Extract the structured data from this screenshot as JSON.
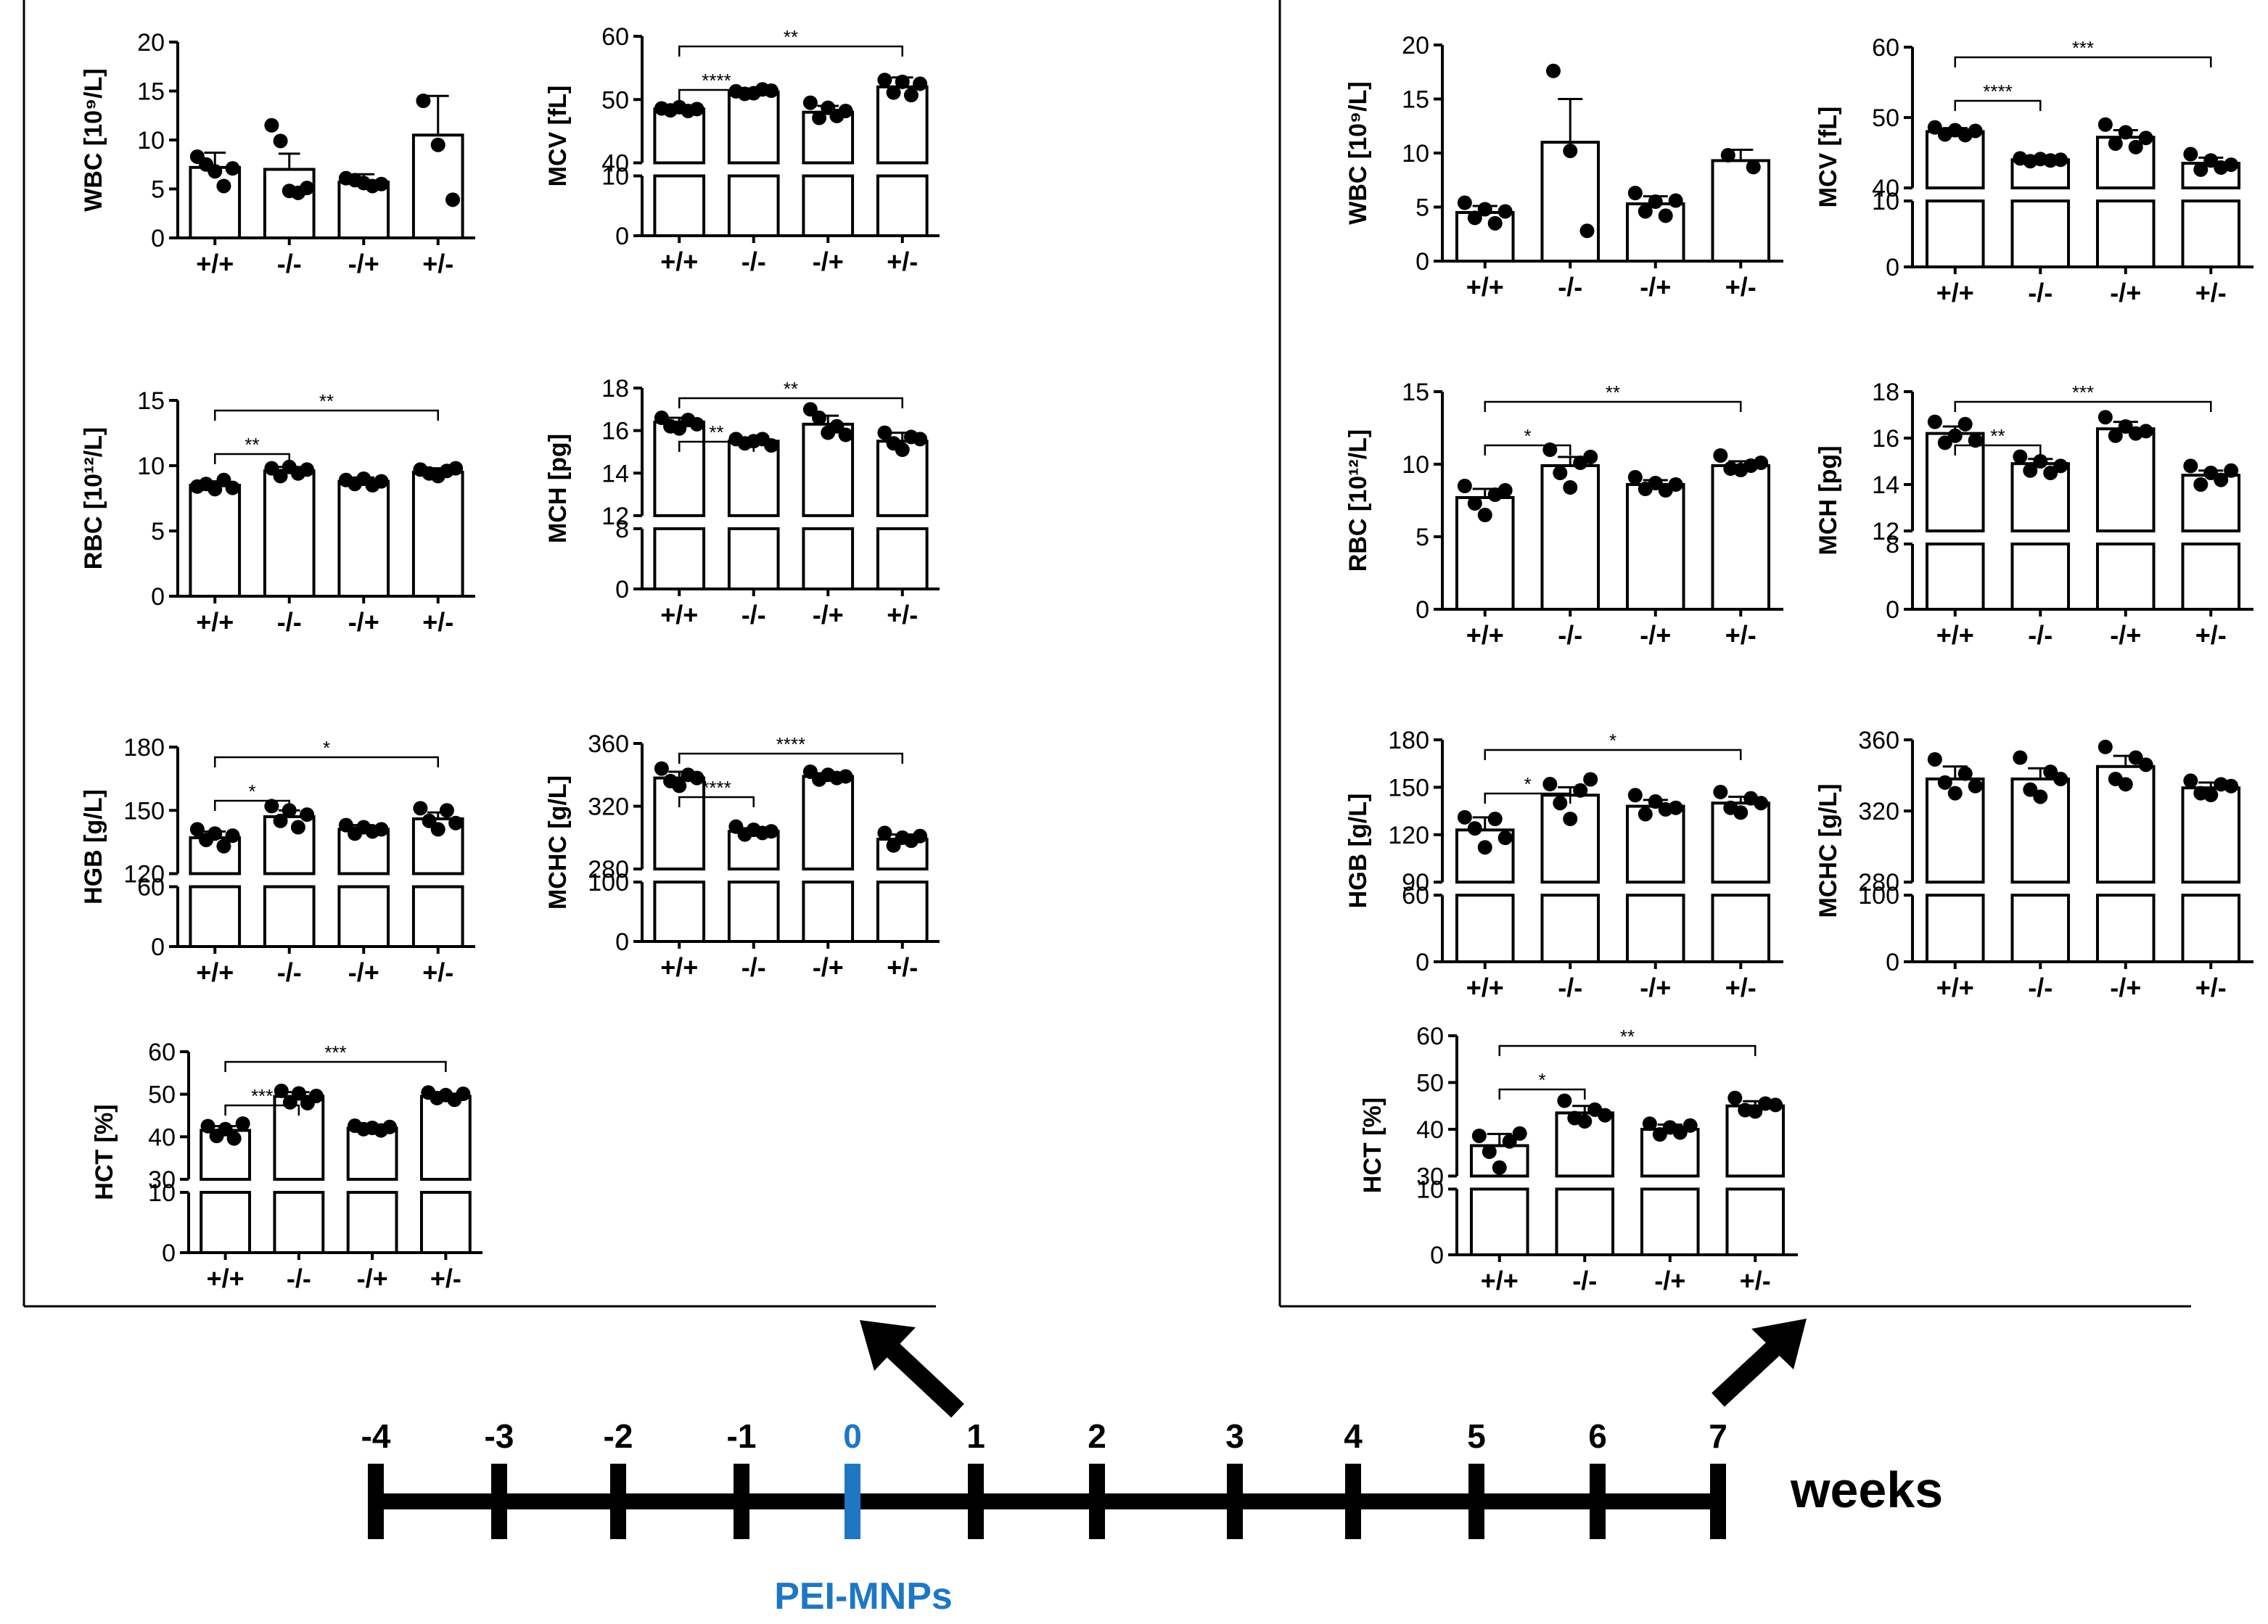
{
  "timeline": {
    "weeks": [
      "-4",
      "-3",
      "-2",
      "-1",
      "0",
      "1",
      "2",
      "3",
      "4",
      "5",
      "6",
      "7"
    ],
    "highlight_week": "0",
    "unit_label": "weeks",
    "injection_label": "PEI-MNPs",
    "line_color": "#000000",
    "highlight_color": "#1f77c4"
  },
  "chart_data": [
    {
      "panel": "week 0",
      "id": "wbc-0",
      "type": "bar",
      "title": "",
      "xlabel": "",
      "ylabel": "WBC [10⁹/L]",
      "categories": [
        "+/+",
        "-/-",
        "-/+",
        "+/-"
      ],
      "values": [
        7.2,
        7.0,
        5.7,
        10.5
      ],
      "errors": [
        1.5,
        1.6,
        0.8,
        4.0
      ],
      "points": [
        [
          8.3,
          7.5,
          6.8,
          5.3,
          7.1
        ],
        [
          11.5,
          9.9,
          4.8,
          4.6,
          5.1
        ],
        [
          6.1,
          5.9,
          5.6,
          5.3,
          5.5
        ],
        [
          14.0,
          9.5,
          3.9
        ]
      ],
      "ylim": [
        0,
        20
      ],
      "yticks": [
        "0",
        "5",
        "10",
        "15",
        "20"
      ],
      "broken": false,
      "significance": []
    },
    {
      "panel": "week 0",
      "id": "mcv-0",
      "type": "bar",
      "title": "",
      "xlabel": "",
      "ylabel": "MCV [fL]",
      "categories": [
        "+/+",
        "-/-",
        "-/+",
        "+/-"
      ],
      "values": [
        48.5,
        51.2,
        48.0,
        52.0
      ],
      "errors": [
        0.5,
        0.5,
        1.0,
        1.5
      ],
      "points": [
        [
          48.6,
          48.3,
          48.8,
          48.2,
          48.5
        ],
        [
          51.3,
          50.9,
          51.0,
          51.6,
          51.4
        ],
        [
          49.5,
          47.1,
          48.7,
          47.4,
          48.2
        ],
        [
          53.1,
          51.1,
          52.8,
          50.7,
          52.5
        ]
      ],
      "ylim": [
        0,
        60
      ],
      "yticks": [
        "0",
        "10",
        "40",
        "50",
        "60"
      ],
      "broken": true,
      "break": [
        10,
        40
      ],
      "significance": [
        {
          "from": 0,
          "to": 1,
          "label": "****"
        },
        {
          "from": 0,
          "to": 3,
          "label": "**"
        }
      ]
    },
    {
      "panel": "week 0",
      "id": "rbc-0",
      "type": "bar",
      "title": "",
      "xlabel": "",
      "ylabel": "RBC [10¹²/L]",
      "categories": [
        "+/+",
        "-/-",
        "-/+",
        "+/-"
      ],
      "values": [
        8.5,
        9.6,
        8.8,
        9.5
      ],
      "errors": [
        0.3,
        0.3,
        0.3,
        0.3
      ],
      "points": [
        [
          8.4,
          8.6,
          8.2,
          8.9,
          8.3
        ],
        [
          9.8,
          9.2,
          9.9,
          9.4,
          9.7
        ],
        [
          8.9,
          8.6,
          9.0,
          8.5,
          8.8
        ],
        [
          9.7,
          9.4,
          9.2,
          9.6,
          9.8
        ]
      ],
      "ylim": [
        0,
        15
      ],
      "yticks": [
        "0",
        "5",
        "10",
        "15"
      ],
      "broken": false,
      "significance": [
        {
          "from": 0,
          "to": 1,
          "label": "**"
        },
        {
          "from": 0,
          "to": 3,
          "label": "**"
        }
      ]
    },
    {
      "panel": "week 0",
      "id": "mch-0",
      "type": "bar",
      "title": "",
      "xlabel": "",
      "ylabel": "MCH [pg]",
      "categories": [
        "+/+",
        "-/-",
        "-/+",
        "+/-"
      ],
      "values": [
        16.4,
        15.5,
        16.3,
        15.5
      ],
      "errors": [
        0.2,
        0.1,
        0.4,
        0.4
      ],
      "points": [
        [
          16.6,
          16.2,
          16.1,
          16.5,
          16.3
        ],
        [
          15.6,
          15.4,
          15.5,
          15.6,
          15.3
        ],
        [
          17.0,
          16.6,
          15.9,
          16.2,
          15.8
        ],
        [
          15.9,
          15.4,
          15.1,
          15.7,
          15.6
        ]
      ],
      "ylim": [
        0,
        18
      ],
      "yticks": [
        "0",
        "8",
        "12",
        "14",
        "16",
        "18"
      ],
      "broken": true,
      "break": [
        8,
        12
      ],
      "significance": [
        {
          "from": 0,
          "to": 1,
          "label": "**"
        },
        {
          "from": 0,
          "to": 3,
          "label": "**"
        }
      ]
    },
    {
      "panel": "week 0",
      "id": "hgb-0",
      "type": "bar",
      "title": "",
      "xlabel": "",
      "ylabel": "HGB [g/L]",
      "categories": [
        "+/+",
        "-/-",
        "-/+",
        "+/-"
      ],
      "values": [
        137,
        147,
        141,
        146
      ],
      "errors": [
        3,
        3,
        2,
        3
      ],
      "points": [
        [
          141,
          136,
          139,
          133,
          138
        ],
        [
          152,
          145,
          150,
          142,
          148
        ],
        [
          143,
          139,
          142,
          140,
          141
        ],
        [
          151,
          145,
          141,
          150,
          144
        ]
      ],
      "ylim": [
        0,
        180
      ],
      "yticks": [
        "0",
        "60",
        "120",
        "150",
        "180"
      ],
      "broken": true,
      "break": [
        60,
        120
      ],
      "significance": [
        {
          "from": 0,
          "to": 1,
          "label": "*"
        },
        {
          "from": 0,
          "to": 3,
          "label": "*"
        }
      ]
    },
    {
      "panel": "week 0",
      "id": "mchc-0",
      "type": "bar",
      "title": "",
      "xlabel": "",
      "ylabel": "MCHC [g/L]",
      "categories": [
        "+/+",
        "-/-",
        "-/+",
        "+/-"
      ],
      "values": [
        338,
        304,
        339,
        299
      ],
      "errors": [
        4,
        2,
        2,
        3
      ],
      "points": [
        [
          344,
          336,
          333,
          340,
          338
        ],
        [
          307,
          302,
          305,
          303,
          304
        ],
        [
          342,
          337,
          340,
          338,
          339
        ],
        [
          303,
          295,
          300,
          298,
          301
        ]
      ],
      "ylim": [
        0,
        360
      ],
      "yticks": [
        "0",
        "100",
        "280",
        "320",
        "360"
      ],
      "broken": true,
      "break": [
        100,
        280
      ],
      "significance": [
        {
          "from": 0,
          "to": 1,
          "label": "****"
        },
        {
          "from": 0,
          "to": 3,
          "label": "****"
        }
      ]
    },
    {
      "panel": "week 0",
      "id": "hct-0",
      "type": "bar",
      "title": "",
      "xlabel": "",
      "ylabel": "HCT [%]",
      "categories": [
        "+/+",
        "-/-",
        "-/+",
        "+/-"
      ],
      "values": [
        41.5,
        49.5,
        42.0,
        49.5
      ],
      "errors": [
        1,
        1,
        0.5,
        0.5
      ],
      "points": [
        [
          42.5,
          40.2,
          41.8,
          39.6,
          43.1
        ],
        [
          50.8,
          48.1,
          50.2,
          47.9,
          49.6
        ],
        [
          42.6,
          41.8,
          42.1,
          41.5,
          42.3
        ],
        [
          50.4,
          49.1,
          49.8,
          48.7,
          50.1
        ]
      ],
      "ylim": [
        0,
        60
      ],
      "yticks": [
        "0",
        "10",
        "30",
        "40",
        "50",
        "60"
      ],
      "broken": true,
      "break": [
        10,
        30
      ],
      "significance": [
        {
          "from": 0,
          "to": 1,
          "label": "***"
        },
        {
          "from": 0,
          "to": 3,
          "label": "***"
        }
      ]
    },
    {
      "panel": "week 7",
      "id": "wbc-7",
      "type": "bar",
      "title": "",
      "xlabel": "",
      "ylabel": "WBC [10⁹/L]",
      "categories": [
        "+/+",
        "-/-",
        "-/+",
        "+/-"
      ],
      "values": [
        4.5,
        11.0,
        5.3,
        9.3
      ],
      "errors": [
        0.6,
        4.0,
        0.7,
        1.0
      ],
      "points": [
        [
          5.4,
          4.0,
          4.8,
          3.5,
          4.6
        ],
        [
          17.6,
          10.2,
          2.8
        ],
        [
          6.3,
          4.6,
          5.5,
          4.2,
          5.6
        ],
        [
          9.8,
          8.7
        ]
      ],
      "ylim": [
        0,
        20
      ],
      "yticks": [
        "0",
        "5",
        "10",
        "15",
        "20"
      ],
      "broken": false,
      "significance": []
    },
    {
      "panel": "week 7",
      "id": "mcv-7",
      "type": "bar",
      "title": "",
      "xlabel": "",
      "ylabel": "MCV [fL]",
      "categories": [
        "+/+",
        "-/-",
        "-/+",
        "+/-"
      ],
      "values": [
        48.0,
        44.0,
        47.2,
        43.5
      ],
      "errors": [
        0.5,
        0.3,
        1.0,
        0.8
      ],
      "points": [
        [
          48.6,
          47.6,
          48.2,
          47.5,
          48.1
        ],
        [
          44.2,
          43.8,
          44.1,
          43.9,
          44.0
        ],
        [
          49.0,
          46.3,
          47.9,
          45.8,
          47.1
        ],
        [
          44.8,
          42.6,
          43.9,
          42.9,
          43.3
        ]
      ],
      "ylim": [
        0,
        60
      ],
      "yticks": [
        "0",
        "10",
        "40",
        "50",
        "60"
      ],
      "broken": true,
      "break": [
        10,
        40
      ],
      "significance": [
        {
          "from": 0,
          "to": 1,
          "label": "****"
        },
        {
          "from": 0,
          "to": 3,
          "label": "***"
        }
      ]
    },
    {
      "panel": "week 7",
      "id": "rbc-7",
      "type": "bar",
      "title": "",
      "xlabel": "",
      "ylabel": "RBC [10¹²/L]",
      "categories": [
        "+/+",
        "-/-",
        "-/+",
        "+/-"
      ],
      "values": [
        7.7,
        9.9,
        8.6,
        9.9
      ],
      "errors": [
        0.6,
        0.6,
        0.3,
        0.3
      ],
      "points": [
        [
          8.5,
          7.3,
          6.5,
          7.9,
          8.2
        ],
        [
          11.0,
          9.4,
          8.4,
          10.1,
          10.5
        ],
        [
          9.1,
          8.3,
          8.7,
          8.2,
          8.6
        ],
        [
          10.6,
          9.7,
          9.6,
          9.9,
          10.1
        ]
      ],
      "ylim": [
        0,
        15
      ],
      "yticks": [
        "0",
        "5",
        "10",
        "15"
      ],
      "broken": false,
      "significance": [
        {
          "from": 0,
          "to": 1,
          "label": "*"
        },
        {
          "from": 0,
          "to": 3,
          "label": "**"
        }
      ]
    },
    {
      "panel": "week 7",
      "id": "mch-7",
      "type": "bar",
      "title": "",
      "xlabel": "",
      "ylabel": "MCH [pg]",
      "categories": [
        "+/+",
        "-/-",
        "-/+",
        "+/-"
      ],
      "values": [
        16.2,
        14.9,
        16.4,
        14.4
      ],
      "errors": [
        0.3,
        0.2,
        0.3,
        0.2
      ],
      "points": [
        [
          16.7,
          15.8,
          16.1,
          16.6,
          15.9
        ],
        [
          15.2,
          14.6,
          15.0,
          14.5,
          14.8
        ],
        [
          16.9,
          16.1,
          16.5,
          16.2,
          16.3
        ],
        [
          14.8,
          14.0,
          14.5,
          14.2,
          14.6
        ]
      ],
      "ylim": [
        0,
        18
      ],
      "yticks": [
        "0",
        "8",
        "12",
        "14",
        "16",
        "18"
      ],
      "broken": true,
      "break": [
        8,
        12
      ],
      "significance": [
        {
          "from": 0,
          "to": 1,
          "label": "**"
        },
        {
          "from": 0,
          "to": 3,
          "label": "***"
        }
      ]
    },
    {
      "panel": "week 7",
      "id": "hgb-7",
      "type": "bar",
      "title": "",
      "xlabel": "",
      "ylabel": "HGB [g/L]",
      "categories": [
        "+/+",
        "-/-",
        "-/+",
        "+/-"
      ],
      "values": [
        123,
        145,
        138,
        140
      ],
      "errors": [
        8,
        5,
        4,
        4
      ],
      "points": [
        [
          131,
          124,
          112,
          130,
          118
        ],
        [
          152,
          140,
          130,
          148,
          155
        ],
        [
          145,
          133,
          141,
          136,
          137
        ],
        [
          147,
          137,
          134,
          143,
          140
        ]
      ],
      "ylim": [
        0,
        180
      ],
      "yticks": [
        "0",
        "60",
        "90",
        "120",
        "150",
        "180"
      ],
      "broken": true,
      "break": [
        60,
        90
      ],
      "significance": [
        {
          "from": 0,
          "to": 1,
          "label": "*"
        },
        {
          "from": 0,
          "to": 3,
          "label": "*"
        }
      ]
    },
    {
      "panel": "week 7",
      "id": "mchc-7",
      "type": "bar",
      "title": "",
      "xlabel": "",
      "ylabel": "MCHC [g/L]",
      "categories": [
        "+/+",
        "-/-",
        "-/+",
        "+/-"
      ],
      "values": [
        338,
        338,
        345,
        333
      ],
      "errors": [
        7,
        6,
        6,
        3
      ],
      "points": [
        [
          349,
          336,
          330,
          341,
          334
        ],
        [
          350,
          332,
          328,
          342,
          338
        ],
        [
          356,
          338,
          335,
          350,
          346
        ],
        [
          337,
          330,
          329,
          335,
          334
        ]
      ],
      "ylim": [
        0,
        360
      ],
      "yticks": [
        "0",
        "100",
        "280",
        "320",
        "360"
      ],
      "broken": true,
      "break": [
        100,
        280
      ],
      "significance": []
    },
    {
      "panel": "week 7",
      "id": "hct-7",
      "type": "bar",
      "title": "",
      "xlabel": "",
      "ylabel": "HCT [%]",
      "categories": [
        "+/+",
        "-/-",
        "-/+",
        "+/-"
      ],
      "values": [
        36.5,
        43.5,
        40.0,
        45.0
      ],
      "errors": [
        2.5,
        1.5,
        1.0,
        1.0
      ],
      "points": [
        [
          38.6,
          35.2,
          31.8,
          37.4,
          39.1
        ],
        [
          46.1,
          42.4,
          41.7,
          44.2,
          43.0
        ],
        [
          41.2,
          38.9,
          40.4,
          39.3,
          40.8
        ],
        [
          46.7,
          44.1,
          43.8,
          45.5,
          45.2
        ]
      ],
      "ylim": [
        0,
        60
      ],
      "yticks": [
        "0",
        "10",
        "30",
        "40",
        "50",
        "60"
      ],
      "broken": true,
      "break": [
        10,
        30
      ],
      "significance": [
        {
          "from": 0,
          "to": 1,
          "label": "*"
        },
        {
          "from": 0,
          "to": 3,
          "label": "**"
        }
      ]
    }
  ]
}
